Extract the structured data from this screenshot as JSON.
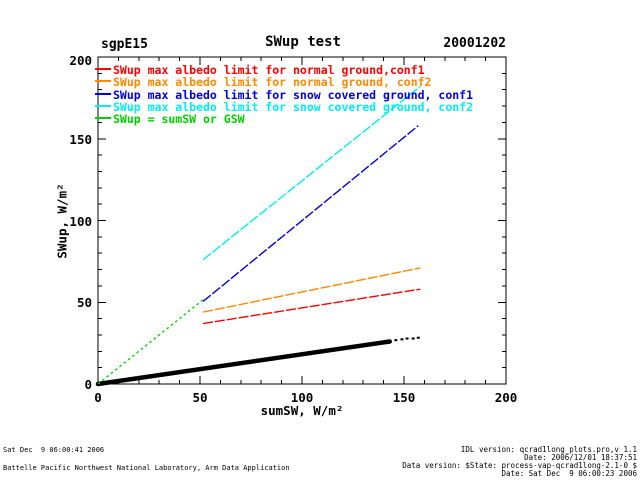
{
  "header": {
    "site": "sgpE15",
    "title": "SWup test",
    "date": "20001202"
  },
  "chart_data": {
    "type": "line",
    "title": "SWup test",
    "xlabel": "sumSW, W/m²",
    "ylabel": "SWup, W/m²",
    "xlim": [
      0,
      200
    ],
    "ylim": [
      0,
      200
    ],
    "xticks": [
      "0",
      "50",
      "100",
      "150",
      "200"
    ],
    "yticks": [
      "0",
      "50",
      "100",
      "150",
      "200"
    ],
    "major_tick_step": 50,
    "minor_tick_step": 10,
    "grid": "off",
    "legend_position": "top-left-inside",
    "legend": {
      "items": [
        {
          "label": "SWup max albedo limit for normal ground,conf1",
          "color": "#ff0000"
        },
        {
          "label": "SWup max albedo limit for normal ground, conf2",
          "color": "#ff8800"
        },
        {
          "label": "SWup max albedo limit for snow covered ground, conf1",
          "color": "#0000e0"
        },
        {
          "label": "SWup max albedo limit for snow covered ground, conf2",
          "color": "#00eeee"
        },
        {
          "label": "SWup = sumSW or GSW",
          "color": "#00d000"
        }
      ]
    },
    "series": [
      {
        "name": "swup-measured",
        "color": "#000000",
        "style": "solid",
        "width": 4.5,
        "x": [
          0,
          143
        ],
        "y": [
          0,
          26
        ]
      },
      {
        "name": "identity-swup-eq-sumsw",
        "color": "#00d000",
        "style": "dotted",
        "width": 1.4,
        "x": [
          0,
          51.5
        ],
        "y": [
          0,
          51.5
        ]
      },
      {
        "name": "snow-ground-conf1",
        "color": "#0000e0",
        "style": "dashed",
        "width": 1.4,
        "x": [
          51.5,
          157
        ],
        "y": [
          50.5,
          158
        ]
      },
      {
        "name": "snow-ground-conf2",
        "color": "#00eeee",
        "style": "dashed",
        "width": 1.4,
        "x": [
          51.5,
          158
        ],
        "y": [
          76,
          182
        ]
      },
      {
        "name": "normal-ground-conf2",
        "color": "#ff8800",
        "style": "dashed",
        "width": 1.4,
        "x": [
          51.5,
          158
        ],
        "y": [
          44,
          71
        ]
      },
      {
        "name": "normal-ground-conf1",
        "color": "#ff0000",
        "style": "dashed",
        "width": 1.4,
        "x": [
          51.5,
          158
        ],
        "y": [
          37,
          58
        ]
      }
    ],
    "scatter_points": {
      "color": "#000000",
      "points": [
        [
          146,
          26.5
        ],
        [
          149,
          27
        ],
        [
          151.5,
          27.5
        ],
        [
          154.5,
          27.5
        ],
        [
          157,
          28
        ]
      ]
    }
  },
  "footer": {
    "left_line1": "Sat Dec  9 06:00:41 2006",
    "left_line2": "Battelle Pacific Northwest National Laboratory, Arm Data Application",
    "right_line1": "IDL version: qcrad1long_plots.pro,v 1.1",
    "right_line2": "Date: 2006/12/01 18:37:51",
    "right_line3": "Data version: $State: process-vap-qcrad1long-2.1-0 $",
    "right_line4": "Date: Sat Dec  9 06:00:23 2006"
  }
}
